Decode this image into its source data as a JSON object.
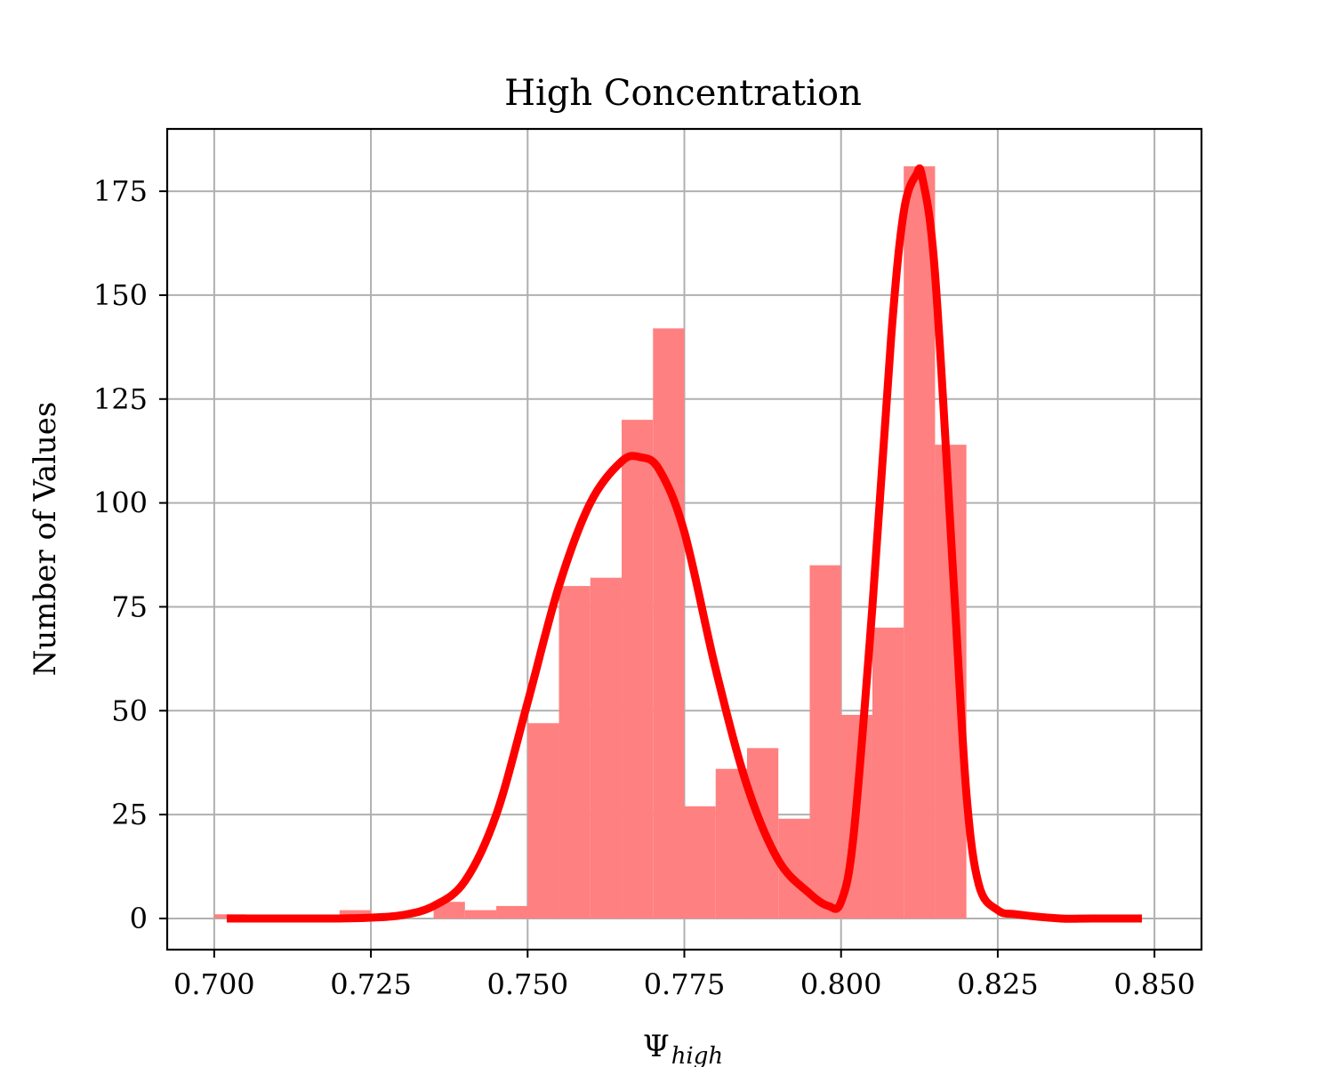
{
  "chart_data": {
    "type": "bar",
    "title": "High Concentration",
    "xlabel": "Ψ",
    "xlabel_subscript": "high",
    "ylabel": "Number of Values",
    "xlim": [
      0.6925,
      0.8575
    ],
    "ylim": [
      -7.5,
      190
    ],
    "grid": true,
    "x_ticks": [
      0.7,
      0.725,
      0.75,
      0.775,
      0.8,
      0.825,
      0.85
    ],
    "x_tick_labels": [
      "0.700",
      "0.725",
      "0.750",
      "0.775",
      "0.800",
      "0.825",
      "0.850"
    ],
    "y_ticks": [
      0,
      25,
      50,
      75,
      100,
      125,
      150,
      175
    ],
    "y_tick_labels": [
      "0",
      "25",
      "50",
      "75",
      "100",
      "125",
      "150",
      "175"
    ],
    "histogram": {
      "bin_width": 0.005,
      "bin_starts": [
        0.7,
        0.72,
        0.735,
        0.74,
        0.745,
        0.75,
        0.755,
        0.76,
        0.765,
        0.77,
        0.775,
        0.78,
        0.785,
        0.79,
        0.795,
        0.8,
        0.805,
        0.81,
        0.815
      ],
      "values": [
        1,
        2,
        4,
        2,
        3,
        47,
        80,
        82,
        120,
        142,
        27,
        36,
        41,
        24,
        85,
        49,
        70,
        181,
        114
      ],
      "color": "#ff8080"
    },
    "curve": {
      "color": "#ff0000",
      "x": [
        0.702,
        0.71,
        0.72,
        0.725,
        0.73,
        0.735,
        0.74,
        0.745,
        0.75,
        0.755,
        0.76,
        0.765,
        0.768,
        0.771,
        0.775,
        0.78,
        0.785,
        0.79,
        0.795,
        0.798,
        0.8,
        0.802,
        0.805,
        0.808,
        0.81,
        0.812,
        0.813,
        0.815,
        0.818,
        0.82,
        0.822,
        0.825,
        0.828,
        0.835,
        0.84,
        0.848
      ],
      "y": [
        0,
        0,
        0,
        0.2,
        0.8,
        3,
        9,
        25,
        52,
        80,
        100,
        110,
        111,
        108,
        93,
        60,
        32,
        14,
        6,
        3,
        4,
        20,
        75,
        140,
        170,
        179,
        178,
        155,
        80,
        30,
        8,
        2,
        1,
        0,
        0,
        0
      ]
    }
  }
}
